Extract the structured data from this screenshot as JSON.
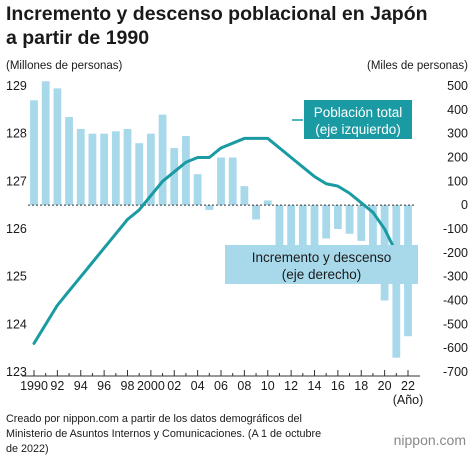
{
  "title_line1": "Incremento y descenso poblacional en Japón",
  "title_line2": "a partir de 1990",
  "left_unit": "(Millones de personas)",
  "right_unit": "(Miles de personas)",
  "source_line1": "Creado por nippon.com a partir de los datos demográficos del",
  "source_line2": "Ministerio de Asuntos Internos y Comunicaciones. (A 1 de octubre",
  "source_line3": "de 2022)",
  "brand": "nippon.com",
  "colors": {
    "line": "#1a9ba3",
    "bar": "#a8d9eb",
    "label_bg": "#a8d9eb",
    "brand": "#888888"
  },
  "chart_data": {
    "type": "bar+line",
    "x": [
      1990,
      1991,
      1992,
      1993,
      1994,
      1995,
      1996,
      1997,
      1998,
      1999,
      2000,
      2001,
      2002,
      2003,
      2004,
      2005,
      2006,
      2007,
      2008,
      2009,
      2010,
      2011,
      2012,
      2013,
      2014,
      2015,
      2016,
      2017,
      2018,
      2019,
      2020,
      2021,
      2022
    ],
    "x_tick_labels": [
      "1990",
      "92",
      "94",
      "96",
      "98",
      "2000",
      "02",
      "04",
      "06",
      "08",
      "10",
      "12",
      "14",
      "16",
      "18",
      "20",
      "22"
    ],
    "x_unit_label": "(Año)",
    "series": [
      {
        "name": "Incremento y descenso\n(eje derecho)",
        "type": "bar",
        "axis": "right",
        "values": [
          440,
          520,
          490,
          370,
          320,
          300,
          300,
          310,
          320,
          260,
          300,
          380,
          240,
          290,
          130,
          -20,
          200,
          200,
          80,
          -60,
          20,
          -200,
          -240,
          -180,
          -170,
          -140,
          -100,
          -120,
          -150,
          -180,
          -400,
          -640,
          -550
        ]
      },
      {
        "name": "Población total\n(eje izquierdo)",
        "type": "line",
        "axis": "left",
        "values": [
          123.6,
          124.0,
          124.4,
          124.7,
          125.0,
          125.3,
          125.6,
          125.9,
          126.2,
          126.4,
          126.7,
          127.0,
          127.2,
          127.4,
          127.5,
          127.5,
          127.7,
          127.8,
          127.9,
          127.9,
          127.9,
          127.7,
          127.5,
          127.3,
          127.1,
          126.95,
          126.9,
          126.75,
          126.55,
          126.35,
          126.0,
          125.5,
          124.95
        ]
      }
    ],
    "left_axis": {
      "ylim": [
        123,
        129
      ],
      "ticks": [
        123,
        124,
        125,
        126,
        127,
        128,
        129
      ]
    },
    "right_axis": {
      "ylim": [
        -700,
        500
      ],
      "ticks": [
        500,
        400,
        300,
        200,
        100,
        0,
        -100,
        -200,
        -300,
        -400,
        -500,
        -600,
        -700
      ]
    },
    "grid": false
  }
}
